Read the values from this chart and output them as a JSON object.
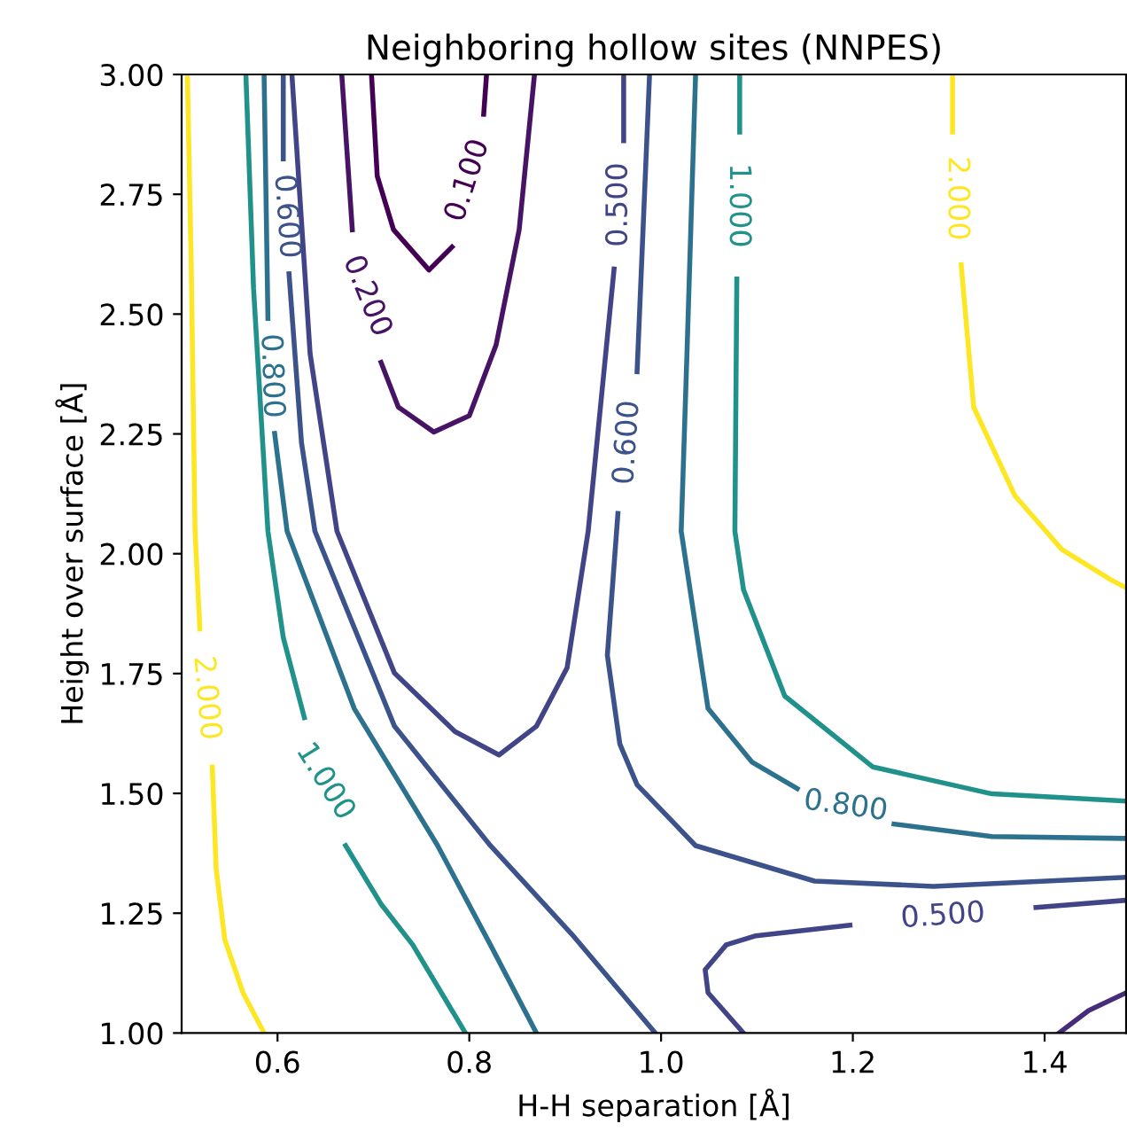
{
  "chart_data": {
    "type": "line",
    "title": "Neighboring hollow sites (NNPES)",
    "xlabel": "H-H separation [Å]",
    "ylabel": "Height over surface [Å]",
    "xlim": [
      0.5,
      1.485
    ],
    "ylim": [
      1.0,
      3.0
    ],
    "xticks": [
      {
        "value": 0.6,
        "label": "0.6"
      },
      {
        "value": 0.8,
        "label": "0.8"
      },
      {
        "value": 1.0,
        "label": "1.0"
      },
      {
        "value": 1.2,
        "label": "1.2"
      },
      {
        "value": 1.4,
        "label": "1.4"
      }
    ],
    "yticks": [
      {
        "value": 1.0,
        "label": "1.00"
      },
      {
        "value": 1.25,
        "label": "1.25"
      },
      {
        "value": 1.5,
        "label": "1.50"
      },
      {
        "value": 1.75,
        "label": "1.75"
      },
      {
        "value": 2.0,
        "label": "2.00"
      },
      {
        "value": 2.25,
        "label": "2.25"
      },
      {
        "value": 2.5,
        "label": "2.50"
      },
      {
        "value": 2.75,
        "label": "2.75"
      },
      {
        "value": 3.0,
        "label": "3.00"
      }
    ],
    "grid": false,
    "legend": false,
    "marker": "none",
    "line_style": "solid",
    "series": [
      {
        "color": "#fde725",
        "x": [
          0.506,
          0.51,
          0.514,
          0.519,
          null,
          0.532,
          0.536,
          0.545,
          0.564,
          0.586
        ],
        "values": [
          3.0,
          2.603,
          2.047,
          1.843,
          null,
          1.555,
          1.343,
          1.195,
          1.084,
          1.0
        ]
      },
      {
        "color": "#21918c",
        "x": [
          0.567,
          0.575,
          0.59,
          0.606,
          0.628,
          null,
          0.671,
          0.708,
          0.741,
          0.796
        ],
        "values": [
          3.0,
          2.554,
          2.047,
          1.825,
          1.658,
          null,
          1.391,
          1.269,
          1.184,
          1.0
        ]
      },
      {
        "color": "#2c728e",
        "x": [
          0.586,
          0.59,
          null,
          0.597,
          0.61,
          0.68,
          0.767,
          0.822,
          0.87
        ],
        "values": [
          3.0,
          2.491,
          null,
          2.251,
          2.047,
          1.677,
          1.391,
          1.184,
          1.0
        ]
      },
      {
        "color": "#3b528b",
        "x": [
          0.606,
          0.606,
          null,
          0.612,
          0.625,
          0.639,
          0.722,
          0.822,
          0.907,
          0.994
        ],
        "values": [
          3.0,
          2.824,
          null,
          2.584,
          2.232,
          2.047,
          1.64,
          1.391,
          1.206,
          1.0
        ]
      },
      {
        "color": "#414487",
        "x": [
          0.615,
          0.634,
          0.662,
          0.722,
          0.785,
          0.831,
          0.87,
          0.902,
          0.924,
          0.951,
          null,
          0.961,
          0.961
        ],
        "values": [
          3.0,
          2.417,
          2.047,
          1.751,
          1.629,
          1.58,
          1.64,
          1.762,
          2.047,
          2.594,
          null,
          2.862,
          3.0
        ]
      },
      {
        "color": "#3b528b",
        "x": [
          0.988,
          0.975,
          null,
          0.955,
          0.944,
          0.957,
          0.975,
          1.036,
          1.16,
          1.284,
          1.485
        ],
        "values": [
          3.0,
          2.38,
          null,
          2.084,
          1.788,
          1.603,
          1.518,
          1.391,
          1.317,
          1.306,
          1.325
        ]
      },
      {
        "color": "#2c728e",
        "x": [
          1.036,
          1.027,
          1.021,
          1.049,
          1.095,
          1.142,
          null,
          1.243,
          1.345,
          1.485
        ],
        "values": [
          3.0,
          2.417,
          2.047,
          1.677,
          1.565,
          1.51,
          null,
          1.436,
          1.41,
          1.406
        ]
      },
      {
        "color": "#21918c",
        "x": [
          1.082,
          1.082,
          null,
          1.079,
          1.077,
          1.086,
          1.129,
          1.221,
          1.345,
          1.485
        ],
        "values": [
          3.0,
          2.88,
          null,
          2.573,
          2.047,
          1.925,
          1.703,
          1.555,
          1.499,
          1.484
        ]
      },
      {
        "color": "#fde725",
        "x": [
          1.304,
          1.304,
          null,
          1.313,
          1.326,
          1.369,
          1.418,
          1.468,
          1.485
        ],
        "values": [
          3.0,
          2.88,
          null,
          2.603,
          2.306,
          2.121,
          2.009,
          1.947,
          1.929
        ]
      },
      {
        "color": "#414487",
        "x": [
          1.086,
          1.049,
          1.046,
          1.068,
          1.099,
          1.197,
          null,
          1.391,
          1.485
        ],
        "values": [
          1.0,
          1.084,
          1.132,
          1.184,
          1.203,
          1.225,
          null,
          1.262,
          1.277
        ]
      },
      {
        "color": "#472c7a",
        "x": [
          1.415,
          1.446,
          1.485
        ],
        "values": [
          1.0,
          1.047,
          1.084
        ]
      },
      {
        "color": "#440154",
        "x": [
          0.698,
          0.704,
          0.721,
          0.758,
          0.782,
          null,
          0.815,
          0.818
        ],
        "values": [
          3.0,
          2.788,
          2.676,
          2.592,
          2.64,
          null,
          2.917,
          3.0
        ]
      },
      {
        "color": "#471365",
        "x": [
          0.667,
          0.678,
          null,
          0.708,
          0.726,
          0.763,
          0.8,
          0.828,
          0.852,
          0.868
        ],
        "values": [
          3.0,
          2.676,
          null,
          2.399,
          2.306,
          2.254,
          2.288,
          2.436,
          2.676,
          3.0
        ]
      }
    ],
    "annotations": [
      "2.000",
      "1.000",
      "0.800",
      "0.600",
      "0.500",
      "0.600",
      "0.800",
      "1.000",
      "2.000",
      "0.500",
      "0.100",
      "0.200"
    ]
  }
}
